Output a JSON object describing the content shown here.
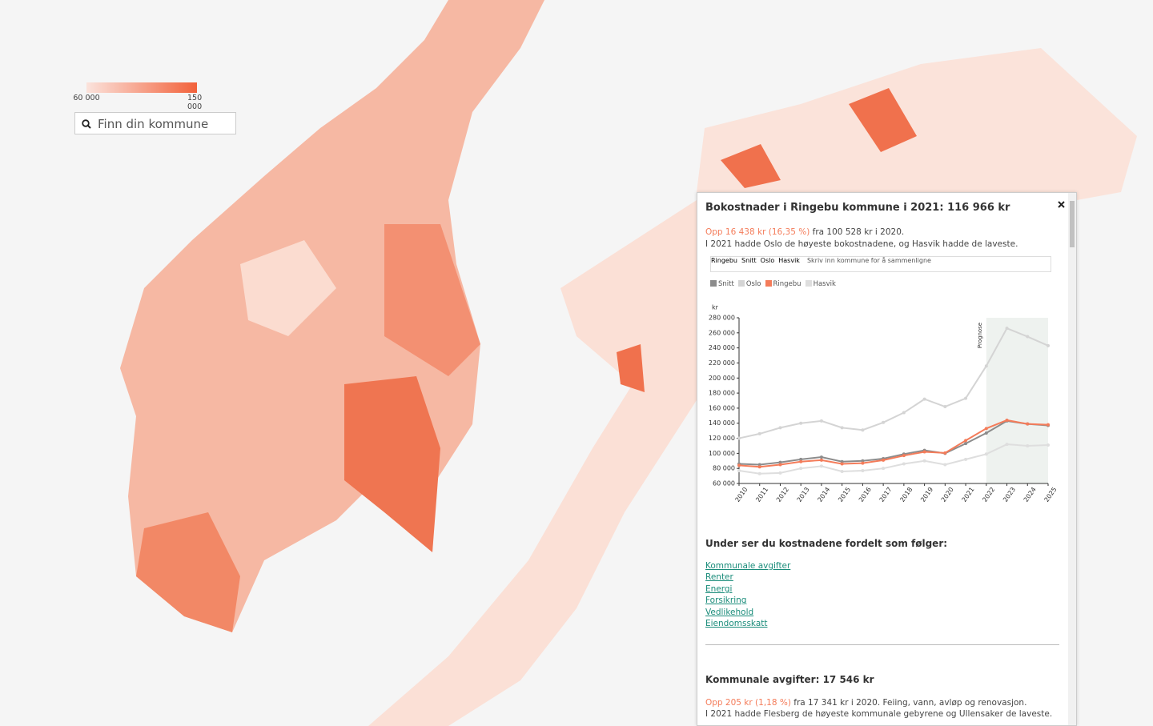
{
  "color_scale": {
    "range": [
      60000,
      150000
    ],
    "ticks": [
      {
        "value": 60000,
        "label": "60 000"
      },
      {
        "value": 150000,
        "label": "150 000"
      }
    ]
  },
  "search": {
    "placeholder": "Finn din kommune"
  },
  "panel": {
    "title": "Bokostnader i Ringebu kommune i 2021: 116 966 kr",
    "change": "Opp 16 438 kr (16,35 %)",
    "change_text": " fra 100 528 kr i 2020.",
    "summary": "I 2021 hadde Oslo de høyeste bokostnadene, og Hasvik hadde de laveste.",
    "tags": [
      "Ringebu",
      "Snitt",
      "Oslo",
      "Hasvik"
    ],
    "input_placeholder": "Skriv inn kommune for å sammenligne",
    "breakdown_heading": "Under ser du kostnadene fordelt som følger:",
    "links": [
      "Kommunale avgifter",
      "Renter",
      "Energi",
      "Forsikring",
      "Vedlikehold",
      "Eiendomsskatt"
    ]
  },
  "chart_data": {
    "type": "line",
    "y_label": "kr",
    "annotation": "Prognose",
    "forecast_from": "2022",
    "categories": [
      "2010",
      "2011",
      "2012",
      "2013",
      "2014",
      "2015",
      "2016",
      "2017",
      "2018",
      "2019",
      "2020",
      "2021",
      "2022",
      "2023",
      "2024",
      "2025"
    ],
    "series": [
      {
        "name": "Snitt",
        "color": "#8c8c8c",
        "values": [
          86000,
          85000,
          88000,
          92000,
          95000,
          89000,
          90000,
          93000,
          99000,
          104000,
          100000,
          113000,
          127000,
          143000,
          139000,
          137000
        ]
      },
      {
        "name": "Oslo",
        "color": "#d4d4d4",
        "values": [
          120000,
          126000,
          134000,
          140000,
          143000,
          134000,
          131000,
          141000,
          154000,
          172000,
          162000,
          173000,
          216000,
          266000,
          255000,
          243000
        ]
      },
      {
        "name": "Ringebu",
        "color": "#f47c5a",
        "values": [
          84000,
          82000,
          85000,
          89000,
          91000,
          86000,
          87000,
          91000,
          97000,
          102000,
          100528,
          116966,
          133000,
          144000,
          139000,
          138000
        ]
      },
      {
        "name": "Hasvik",
        "color": "#dedede",
        "values": [
          77000,
          73000,
          74000,
          80000,
          83000,
          76000,
          77000,
          80000,
          86000,
          90000,
          85000,
          92000,
          99000,
          112000,
          110000,
          111000
        ]
      }
    ],
    "ylim": [
      60000,
      280000
    ],
    "yticks": [
      {
        "value": 60000,
        "label": "60 000"
      },
      {
        "value": 80000,
        "label": "80 000"
      },
      {
        "value": 100000,
        "label": "100 000"
      },
      {
        "value": 120000,
        "label": "120 000"
      },
      {
        "value": 140000,
        "label": "140 000"
      },
      {
        "value": 160000,
        "label": "160 000"
      },
      {
        "value": 180000,
        "label": "180 000"
      },
      {
        "value": 200000,
        "label": "200 000"
      },
      {
        "value": 220000,
        "label": "220 000"
      },
      {
        "value": 240000,
        "label": "240 000"
      },
      {
        "value": 260000,
        "label": "260 000"
      },
      {
        "value": 280000,
        "label": "280 000"
      }
    ]
  },
  "section": {
    "heading": "Kommunale avgifter: 17 546 kr",
    "change": "Opp 205 kr (1,18 %)",
    "change_text": " fra 17 341 kr i 2020. Feiing, vann, avløp og renovasjon.",
    "summary": "I 2021 hadde Flesberg de høyeste kommunale gebyrene og Ullensaker de laveste."
  }
}
